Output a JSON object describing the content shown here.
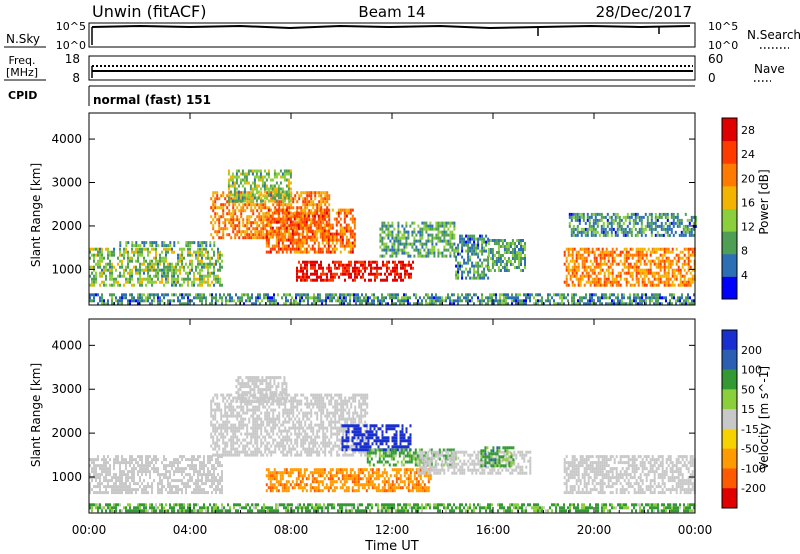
{
  "header": {
    "title": "Unwin (fitACF)",
    "beam": "Beam 14",
    "date": "28/Dec/2017"
  },
  "strips": {
    "nsky_label": "N.Sky",
    "nsky_ticks": [
      "10^5",
      "10^0"
    ],
    "nsearch_label": "N.Search",
    "freq_label_1": "Freq.",
    "freq_label_2": "[MHz]",
    "freq_ticks": [
      "18",
      "8"
    ],
    "nave_label": "Nave",
    "nave_ticks": [
      "60",
      "0"
    ],
    "cpid_label": "CPID",
    "cpid_value": "normal (fast) 151"
  },
  "colors": {
    "power_scale": [
      "#0000ff",
      "#2d6fb4",
      "#4e9e55",
      "#8ccf3c",
      "#f2b400",
      "#ff7b00",
      "#ff3b00",
      "#e00000"
    ],
    "velocity_scale": [
      "#1a2fcf",
      "#2a5fb3",
      "#339933",
      "#8ccf3c",
      "#c8c8c8",
      "#f5d200",
      "#ff9a00",
      "#ff5a00",
      "#e00000"
    ],
    "ground_scatter": "#c8c8c8"
  },
  "chart_data": [
    {
      "type": "heatmap",
      "name": "power",
      "xlabel": "",
      "ylabel": "Slant Range [km]",
      "x_ticks": [
        "00:00",
        "04:00",
        "08:00",
        "12:00",
        "16:00",
        "20:00",
        "00:00"
      ],
      "xlim_hours": [
        0,
        24
      ],
      "y_ticks": [
        1000,
        2000,
        3000,
        4000
      ],
      "ylim_km": [
        180,
        4600
      ],
      "colorbar": {
        "label": "Power [dB]",
        "ticks": [
          4,
          8,
          12,
          16,
          20,
          24,
          28
        ],
        "range": [
          0,
          30
        ]
      },
      "regions": [
        {
          "t0": 0.0,
          "t1": 5.3,
          "r0": 650,
          "r1": 1500,
          "level": 12
        },
        {
          "t0": 1.2,
          "t1": 5.0,
          "r0": 1550,
          "r1": 1650,
          "level": 10
        },
        {
          "t0": 4.8,
          "t1": 9.5,
          "r0": 1700,
          "r1": 2800,
          "level": 20
        },
        {
          "t0": 5.5,
          "t1": 8.0,
          "r0": 2600,
          "r1": 3300,
          "level": 12
        },
        {
          "t0": 7.0,
          "t1": 10.5,
          "r0": 1400,
          "r1": 2400,
          "level": 22
        },
        {
          "t0": 8.2,
          "t1": 12.8,
          "r0": 750,
          "r1": 1200,
          "level": 28
        },
        {
          "t0": 11.5,
          "t1": 14.5,
          "r0": 1300,
          "r1": 2100,
          "level": 10
        },
        {
          "t0": 14.5,
          "t1": 15.8,
          "r0": 800,
          "r1": 1800,
          "level": 8
        },
        {
          "t0": 15.8,
          "t1": 17.3,
          "r0": 1000,
          "r1": 1700,
          "level": 10
        },
        {
          "t0": 18.8,
          "t1": 24.0,
          "r0": 650,
          "r1": 1500,
          "level": 20
        },
        {
          "t0": 19.0,
          "t1": 24.0,
          "r0": 1800,
          "r1": 2300,
          "level": 8
        },
        {
          "t0": 0.0,
          "t1": 24.0,
          "r0": 200,
          "r1": 450,
          "level": 8
        }
      ]
    },
    {
      "type": "heatmap",
      "name": "velocity",
      "xlabel": "Time UT",
      "ylabel": "Slant Range [km]",
      "x_ticks": [
        "00:00",
        "04:00",
        "08:00",
        "12:00",
        "16:00",
        "20:00",
        "00:00"
      ],
      "xlim_hours": [
        0,
        24
      ],
      "y_ticks": [
        1000,
        2000,
        3000,
        4000
      ],
      "ylim_km": [
        180,
        4600
      ],
      "colorbar": {
        "label": "Velocity [m s^-1]",
        "ticks": [
          200,
          100,
          50,
          15,
          -15,
          -50,
          -100,
          -200
        ]
      },
      "regions": [
        {
          "t0": 0.0,
          "t1": 5.3,
          "r0": 650,
          "r1": 1500,
          "kind": "ground"
        },
        {
          "t0": 4.8,
          "t1": 11.0,
          "r0": 1500,
          "r1": 2900,
          "kind": "ground"
        },
        {
          "t0": 5.8,
          "t1": 7.8,
          "r0": 2700,
          "r1": 3300,
          "kind": "ground"
        },
        {
          "t0": 7.0,
          "t1": 13.5,
          "r0": 700,
          "r1": 1200,
          "velocity": -60
        },
        {
          "t0": 10.0,
          "t1": 12.7,
          "r0": 1600,
          "r1": 2200,
          "velocity": 180
        },
        {
          "t0": 11.0,
          "t1": 14.5,
          "r0": 1250,
          "r1": 1650,
          "velocity": 40
        },
        {
          "t0": 13.0,
          "t1": 17.5,
          "r0": 1100,
          "r1": 1600,
          "kind": "ground"
        },
        {
          "t0": 15.5,
          "t1": 16.8,
          "r0": 1250,
          "r1": 1700,
          "velocity": 50
        },
        {
          "t0": 18.8,
          "t1": 24.0,
          "r0": 650,
          "r1": 1500,
          "kind": "ground"
        },
        {
          "t0": 0.0,
          "t1": 24.0,
          "r0": 200,
          "r1": 400,
          "velocity": 40
        }
      ]
    }
  ]
}
